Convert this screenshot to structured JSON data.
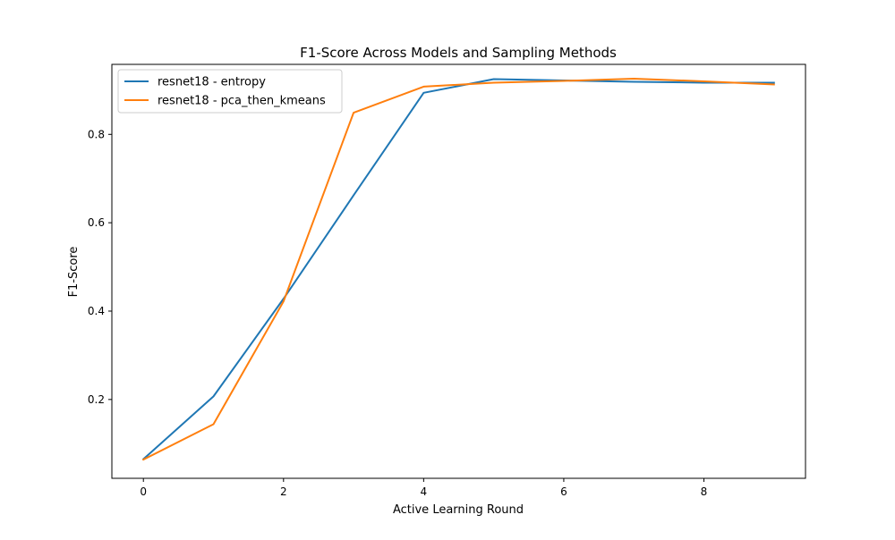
{
  "chart_data": {
    "type": "line",
    "title": "F1-Score Across Models and Sampling Methods",
    "xlabel": "Active Learning Round",
    "ylabel": "F1-Score",
    "x": [
      0,
      1,
      2,
      3,
      4,
      5,
      6,
      7,
      8,
      9
    ],
    "xlim": [
      -0.45,
      9.45
    ],
    "ylim": [
      0.0216,
      0.9584
    ],
    "xticks": [
      0,
      2,
      4,
      6,
      8
    ],
    "xtick_labels": [
      "0",
      "2",
      "4",
      "6",
      "8"
    ],
    "yticks": [
      0.2,
      0.4,
      0.6,
      0.8
    ],
    "ytick_labels": [
      "0.2",
      "0.4",
      "0.6",
      "0.8"
    ],
    "grid": false,
    "legend_position": "top-left",
    "series": [
      {
        "name": "resnet18 - entropy",
        "color": "#1f77b4",
        "values": [
          0.065,
          0.207,
          0.428,
          0.662,
          0.894,
          0.925,
          0.922,
          0.919,
          0.917,
          0.917
        ]
      },
      {
        "name": "resnet18 - pca_then_kmeans",
        "color": "#ff7f0e",
        "values": [
          0.064,
          0.144,
          0.422,
          0.849,
          0.908,
          0.917,
          0.921,
          0.926,
          0.92,
          0.913
        ]
      }
    ]
  }
}
